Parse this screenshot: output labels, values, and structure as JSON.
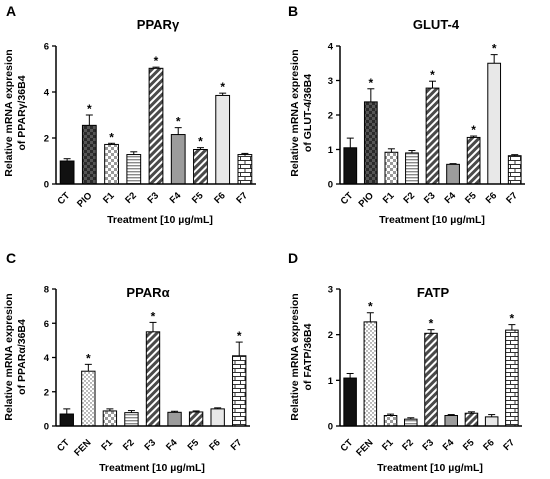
{
  "chart_data": [
    {
      "type": "bar",
      "panel": "A",
      "title": "PPARγ",
      "ylabel": [
        "Relative mRNA expresion",
        "of PPARγ/36B4"
      ],
      "xlabel": "Treatment [10 µg/mL]",
      "categories": [
        "CT",
        "PIO",
        "F1",
        "F2",
        "F3",
        "F4",
        "F5",
        "F6",
        "F7"
      ],
      "values": [
        1.0,
        2.55,
        1.72,
        1.28,
        5.03,
        2.15,
        1.5,
        3.85,
        1.28
      ],
      "errors": [
        0.1,
        0.45,
        0.05,
        0.12,
        0.05,
        0.3,
        0.08,
        0.1,
        0.05
      ],
      "significant": [
        false,
        true,
        true,
        false,
        true,
        true,
        true,
        true,
        false
      ],
      "patterns": [
        "solid",
        "checker-dark",
        "checker-light",
        "hlines",
        "diag-hatch",
        "solid-gray",
        "diag-hatch",
        "solid-light",
        "brick"
      ],
      "ylim": [
        0,
        6
      ],
      "yticks": [
        0,
        2,
        4,
        6
      ],
      "significance_marker": "*"
    },
    {
      "type": "bar",
      "panel": "B",
      "title": "GLUT-4",
      "ylabel": [
        "Relative mRNA expresion",
        "of GLUT-4/36B4"
      ],
      "xlabel": "Treatment [10 µg/mL]",
      "categories": [
        "CT",
        "PIO",
        "F1",
        "F2",
        "F3",
        "F4",
        "F5",
        "F6",
        "F7"
      ],
      "values": [
        1.05,
        2.38,
        0.92,
        0.9,
        2.78,
        0.57,
        1.35,
        3.5,
        0.82
      ],
      "errors": [
        0.28,
        0.38,
        0.1,
        0.07,
        0.2,
        0.02,
        0.04,
        0.25,
        0.03
      ],
      "significant": [
        false,
        true,
        false,
        false,
        true,
        false,
        true,
        true,
        false
      ],
      "patterns": [
        "solid",
        "checker-dark",
        "checker-light",
        "hlines",
        "diag-hatch",
        "solid-gray",
        "diag-hatch",
        "solid-light",
        "brick"
      ],
      "ylim": [
        0,
        4
      ],
      "yticks": [
        0,
        1,
        2,
        3,
        4
      ],
      "significance_marker": "*"
    },
    {
      "type": "bar",
      "panel": "C",
      "title": "PPARα",
      "ylabel": [
        "Relative mRNA expresion",
        "of PPARα/36B4"
      ],
      "xlabel": "Treatment [10 µg/mL]",
      "categories": [
        "CT",
        "FEN",
        "F1",
        "F2",
        "F3",
        "F4",
        "F5",
        "F6",
        "F7"
      ],
      "values": [
        0.7,
        3.2,
        0.88,
        0.78,
        5.5,
        0.8,
        0.82,
        1.0,
        4.1
      ],
      "errors": [
        0.3,
        0.4,
        0.12,
        0.12,
        0.55,
        0.06,
        0.06,
        0.06,
        0.8
      ],
      "significant": [
        false,
        true,
        false,
        false,
        true,
        false,
        false,
        false,
        true
      ],
      "patterns": [
        "solid",
        "dots",
        "checker-light",
        "hlines",
        "diag-hatch",
        "solid-gray",
        "diag-hatch",
        "solid-light",
        "brick"
      ],
      "ylim": [
        0,
        8
      ],
      "yticks": [
        0,
        2,
        4,
        6,
        8
      ],
      "significance_marker": "*"
    },
    {
      "type": "bar",
      "panel": "D",
      "title": "FATP",
      "ylabel": [
        "Relative mRNA expresion",
        "of FATP/36B4"
      ],
      "xlabel": "Treatment [10 µg/mL]",
      "categories": [
        "CT",
        "FEN",
        "F1",
        "F2",
        "F3",
        "F4",
        "F5",
        "F6",
        "F7"
      ],
      "values": [
        1.05,
        2.28,
        0.23,
        0.15,
        2.03,
        0.23,
        0.28,
        0.2,
        2.1
      ],
      "errors": [
        0.1,
        0.2,
        0.03,
        0.03,
        0.08,
        0.02,
        0.03,
        0.05,
        0.12
      ],
      "significant": [
        false,
        true,
        false,
        false,
        true,
        false,
        false,
        false,
        true
      ],
      "patterns": [
        "solid",
        "dots",
        "checker-light",
        "hlines",
        "diag-hatch",
        "solid-gray",
        "diag-hatch",
        "solid-light",
        "brick"
      ],
      "ylim": [
        0,
        3
      ],
      "yticks": [
        0,
        1,
        2,
        3
      ],
      "significance_marker": "*"
    }
  ]
}
